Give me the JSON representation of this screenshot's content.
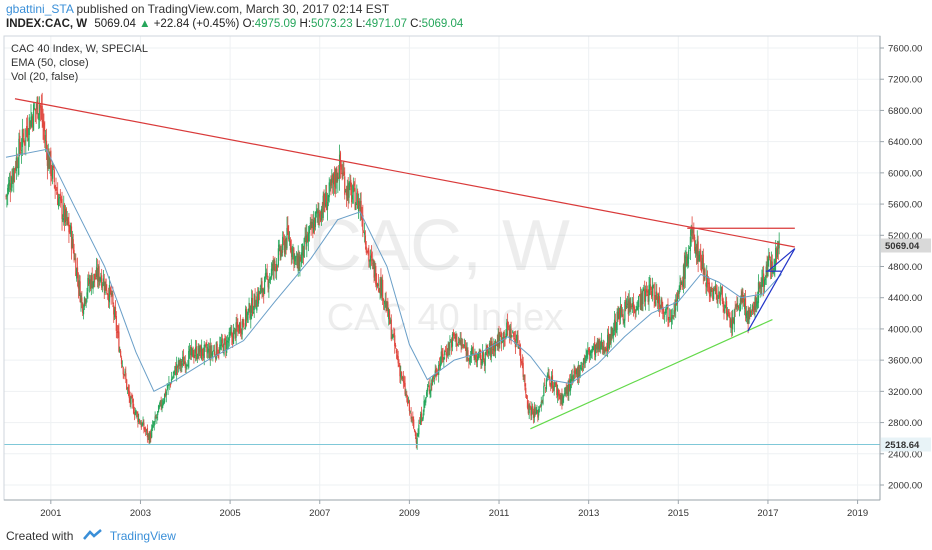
{
  "header": {
    "user": "gbattini_STA",
    "published": "published on TradingView.com, March 30, 2017 02:14 EST",
    "symbol": "INDEX:CAC, W",
    "last": "5069.04",
    "change_arrow": "▲",
    "change": "+22.84 (+0.45%)",
    "open_label": "O:",
    "open": "4975.09",
    "high_label": "H:",
    "high": "5073.23",
    "low_label": "L:",
    "low": "4971.07",
    "close_label": "C:",
    "close": "5069.04"
  },
  "legend": {
    "line1": "CAC 40 Index, W, SPECIAL",
    "line2": "EMA (50, close)",
    "line3": "Vol (20, false)"
  },
  "watermark": {
    "symbol": "CAC, W",
    "name": "CAC 40 Index"
  },
  "footer": {
    "created_with": "Created with",
    "brand": "TradingView"
  },
  "colors": {
    "up": "#26a65b",
    "down": "#e0473e",
    "ema": "#6a9fc8",
    "resistance": "#d93a3a",
    "support": "#63d94a",
    "wedge": "#2234c8",
    "hline": "#7fc8d8",
    "badge_last": "#d9d9d9",
    "badge_level": "#e8f3f7"
  },
  "chart_data": {
    "type": "candlestick",
    "title": "CAC 40 Index, W, SPECIAL",
    "x_range": [
      2000.0,
      2019.5
    ],
    "y_range": [
      1700,
      7800
    ],
    "x_ticks": [
      "2001",
      "2003",
      "2005",
      "2007",
      "2009",
      "2011",
      "2013",
      "2015",
      "2017",
      "2019"
    ],
    "y_ticks": [
      "2000.00",
      "2400.00",
      "2800.00",
      "3200.00",
      "3600.00",
      "4000.00",
      "4400.00",
      "4800.00",
      "5200.00",
      "5600.00",
      "6000.00",
      "6400.00",
      "6800.00",
      "7200.00",
      "7600.00"
    ],
    "last_price_label": "5069.04",
    "level_label": "2518.64",
    "price_path": [
      [
        2000.0,
        5700
      ],
      [
        2000.3,
        6300
      ],
      [
        2000.55,
        6700
      ],
      [
        2000.75,
        6900
      ],
      [
        2000.9,
        6300
      ],
      [
        2001.2,
        5600
      ],
      [
        2001.45,
        5200
      ],
      [
        2001.7,
        4300
      ],
      [
        2001.85,
        4600
      ],
      [
        2002.1,
        4700
      ],
      [
        2002.35,
        4400
      ],
      [
        2002.55,
        3700
      ],
      [
        2002.75,
        3100
      ],
      [
        2003.0,
        2800
      ],
      [
        2003.2,
        2600
      ],
      [
        2003.5,
        3100
      ],
      [
        2003.8,
        3500
      ],
      [
        2004.2,
        3700
      ],
      [
        2004.6,
        3700
      ],
      [
        2004.9,
        3800
      ],
      [
        2005.3,
        4100
      ],
      [
        2005.6,
        4400
      ],
      [
        2005.9,
        4700
      ],
      [
        2006.3,
        5200
      ],
      [
        2006.5,
        4800
      ],
      [
        2006.9,
        5400
      ],
      [
        2007.2,
        5700
      ],
      [
        2007.45,
        6100
      ],
      [
        2007.6,
        5800
      ],
      [
        2007.9,
        5600
      ],
      [
        2008.1,
        4900
      ],
      [
        2008.4,
        4500
      ],
      [
        2008.7,
        3700
      ],
      [
        2008.9,
        3200
      ],
      [
        2009.15,
        2600
      ],
      [
        2009.4,
        3200
      ],
      [
        2009.7,
        3600
      ],
      [
        2010.0,
        3900
      ],
      [
        2010.3,
        3700
      ],
      [
        2010.6,
        3600
      ],
      [
        2010.9,
        3800
      ],
      [
        2011.2,
        4000
      ],
      [
        2011.45,
        3800
      ],
      [
        2011.65,
        3000
      ],
      [
        2011.85,
        2900
      ],
      [
        2012.1,
        3400
      ],
      [
        2012.4,
        3100
      ],
      [
        2012.7,
        3400
      ],
      [
        2013.0,
        3700
      ],
      [
        2013.4,
        3800
      ],
      [
        2013.7,
        4200
      ],
      [
        2014.0,
        4300
      ],
      [
        2014.4,
        4500
      ],
      [
        2014.8,
        4200
      ],
      [
        2015.0,
        4400
      ],
      [
        2015.3,
        5200
      ],
      [
        2015.5,
        4900
      ],
      [
        2015.7,
        4500
      ],
      [
        2016.0,
        4400
      ],
      [
        2016.15,
        4000
      ],
      [
        2016.4,
        4400
      ],
      [
        2016.6,
        4100
      ],
      [
        2016.8,
        4500
      ],
      [
        2017.0,
        4800
      ],
      [
        2017.15,
        4900
      ],
      [
        2017.25,
        5069
      ]
    ],
    "ema_path": [
      [
        2000.0,
        6200
      ],
      [
        2000.9,
        6300
      ],
      [
        2001.5,
        5600
      ],
      [
        2002.2,
        4800
      ],
      [
        2002.9,
        3700
      ],
      [
        2003.3,
        3200
      ],
      [
        2003.8,
        3350
      ],
      [
        2004.5,
        3600
      ],
      [
        2005.3,
        3850
      ],
      [
        2006.0,
        4350
      ],
      [
        2006.8,
        4900
      ],
      [
        2007.4,
        5400
      ],
      [
        2007.9,
        5500
      ],
      [
        2008.5,
        4800
      ],
      [
        2009.0,
        3800
      ],
      [
        2009.4,
        3350
      ],
      [
        2010.0,
        3600
      ],
      [
        2010.6,
        3700
      ],
      [
        2011.2,
        3900
      ],
      [
        2011.7,
        3650
      ],
      [
        2012.1,
        3350
      ],
      [
        2012.6,
        3300
      ],
      [
        2013.2,
        3550
      ],
      [
        2013.8,
        3900
      ],
      [
        2014.4,
        4200
      ],
      [
        2015.0,
        4350
      ],
      [
        2015.5,
        4700
      ],
      [
        2015.9,
        4600
      ],
      [
        2016.4,
        4400
      ],
      [
        2016.9,
        4450
      ],
      [
        2017.3,
        4700
      ]
    ],
    "trendlines": [
      {
        "name": "long-term-resistance",
        "color": "#d93a3a",
        "points": [
          [
            2000.2,
            6950
          ],
          [
            2017.6,
            5050
          ]
        ]
      },
      {
        "name": "horizontal-resistance",
        "color": "#d93a3a",
        "points": [
          [
            2015.2,
            5290
          ],
          [
            2017.6,
            5290
          ]
        ]
      },
      {
        "name": "support-trendline",
        "color": "#63d94a",
        "points": [
          [
            2011.7,
            2720
          ],
          [
            2017.1,
            4120
          ]
        ]
      },
      {
        "name": "wedge-lower",
        "color": "#2234c8",
        "points": [
          [
            2016.55,
            3970
          ],
          [
            2017.6,
            5030
          ]
        ]
      },
      {
        "name": "wedge-upper",
        "color": "#2234c8",
        "points": [
          [
            2017.0,
            4740
          ],
          [
            2017.6,
            5030
          ]
        ]
      },
      {
        "name": "wedge-mid",
        "color": "#2234c8",
        "points": [
          [
            2016.95,
            4740
          ],
          [
            2017.3,
            4740
          ]
        ]
      },
      {
        "name": "level-line",
        "color": "#7fc8d8",
        "points": [
          [
            2000.0,
            2518.64
          ],
          [
            2019.5,
            2518.64
          ]
        ]
      }
    ]
  }
}
